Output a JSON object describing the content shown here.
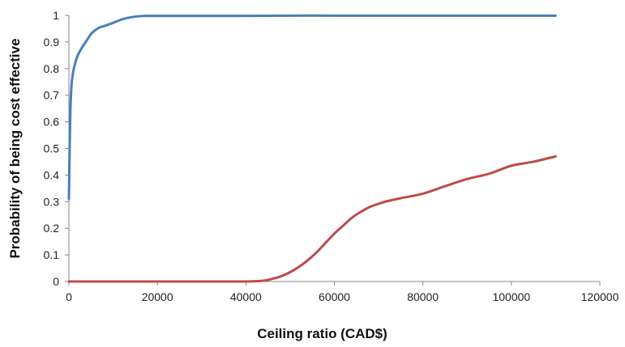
{
  "chart_data": {
    "type": "line",
    "title": "",
    "xlabel": "Ceiling ratio (CAD$)",
    "ylabel": "Probability of being cost effective",
    "xlim": [
      0,
      120000
    ],
    "ylim": [
      0,
      1
    ],
    "x_ticks": [
      0,
      20000,
      40000,
      60000,
      80000,
      100000,
      120000
    ],
    "y_ticks": [
      0,
      0.1,
      0.2,
      0.3,
      0.4,
      0.5,
      0.6,
      0.7,
      0.8,
      0.9,
      1
    ],
    "grid": false,
    "legend": "none",
    "series": [
      {
        "color": "#4a7ebb",
        "x": [
          0,
          300,
          600,
          1000,
          1500,
          2000,
          3000,
          4000,
          5000,
          6000,
          7000,
          8000,
          10000,
          12000,
          14000,
          16000,
          18000,
          20000,
          30000,
          40000,
          50000,
          60000,
          70000,
          80000,
          90000,
          100000,
          110000
        ],
        "y": [
          0.31,
          0.62,
          0.74,
          0.79,
          0.825,
          0.85,
          0.88,
          0.905,
          0.93,
          0.945,
          0.955,
          0.96,
          0.972,
          0.985,
          0.993,
          0.997,
          0.998,
          0.998,
          0.998,
          0.998,
          0.999,
          0.999,
          0.999,
          0.999,
          0.999,
          0.999,
          0.999
        ]
      },
      {
        "color": "#be4b48",
        "x": [
          0,
          10000,
          20000,
          30000,
          40000,
          44000,
          46000,
          48000,
          50000,
          52000,
          54000,
          56000,
          58000,
          60000,
          62000,
          64000,
          66000,
          68000,
          70000,
          72000,
          75000,
          80000,
          85000,
          90000,
          95000,
          100000,
          105000,
          110000
        ],
        "y": [
          0,
          0,
          0,
          0,
          0,
          0.003,
          0.01,
          0.02,
          0.035,
          0.055,
          0.08,
          0.11,
          0.145,
          0.18,
          0.21,
          0.24,
          0.262,
          0.28,
          0.292,
          0.302,
          0.313,
          0.33,
          0.358,
          0.385,
          0.405,
          0.435,
          0.45,
          0.47
        ]
      }
    ]
  }
}
